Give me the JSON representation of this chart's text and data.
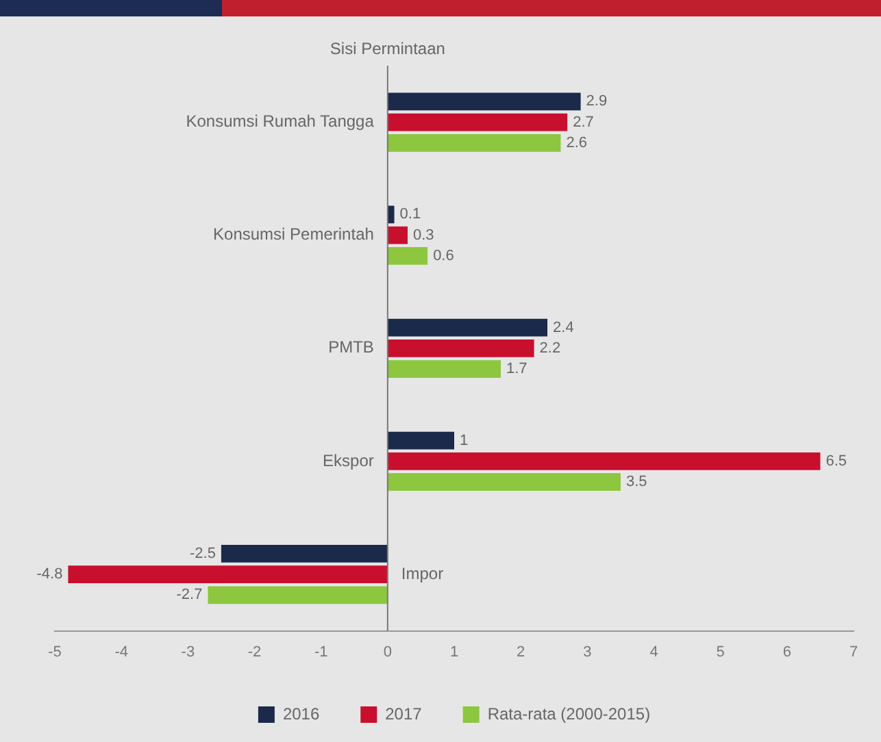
{
  "chart_data": {
    "type": "bar",
    "orientation": "horizontal",
    "title": "Sisi Permintaan",
    "categories": [
      "Konsumsi Rumah Tangga",
      "Konsumsi Pemerintah",
      "PMTB",
      "Ekspor",
      "Impor"
    ],
    "series": [
      {
        "name": "2016",
        "color": "#1b2a4a",
        "values": [
          2.9,
          0.1,
          2.4,
          1.0,
          -2.5
        ]
      },
      {
        "name": "2017",
        "color": "#c8102e",
        "values": [
          2.7,
          0.3,
          2.2,
          6.5,
          -4.8
        ]
      },
      {
        "name": "Rata-rata (2000-2015)",
        "color": "#8dc63f",
        "values": [
          2.6,
          0.6,
          1.7,
          3.5,
          -2.7
        ]
      }
    ],
    "xlim": [
      -5,
      7
    ],
    "xticks": [
      -5,
      -4,
      -3,
      -2,
      -1,
      0,
      1,
      2,
      3,
      4,
      5,
      6,
      7
    ],
    "data_labels": true,
    "grid": false,
    "legend": "bottom"
  }
}
